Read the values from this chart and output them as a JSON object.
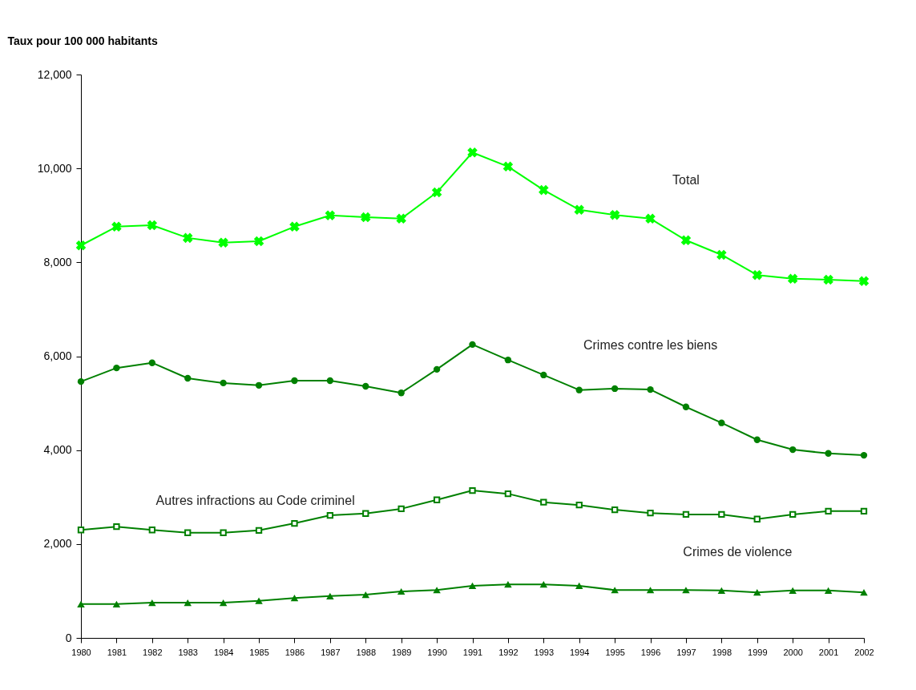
{
  "chart_data": {
    "type": "line",
    "ylabel": "Taux pour 100 000 habitants",
    "categories": [
      "1980",
      "1981",
      "1982",
      "1983",
      "1984",
      "1985",
      "1986",
      "1987",
      "1988",
      "1989",
      "1990",
      "1991",
      "1992",
      "1993",
      "1994",
      "1995",
      "1996",
      "1997",
      "1998",
      "1999",
      "2000",
      "2001",
      "2002"
    ],
    "series": [
      {
        "name": "Total",
        "color": "#00ff00",
        "marker": "cross",
        "values": [
          8360,
          8760,
          8790,
          8520,
          8420,
          8450,
          8760,
          9000,
          8960,
          8930,
          9490,
          10340,
          10040,
          9540,
          9120,
          9010,
          8930,
          8470,
          8160,
          7730,
          7650,
          7630,
          7600
        ]
      },
      {
        "name": "Crimes contre les biens",
        "color": "#008000",
        "marker": "circle",
        "values": [
          5460,
          5750,
          5860,
          5530,
          5430,
          5380,
          5480,
          5480,
          5360,
          5220,
          5720,
          6250,
          5920,
          5600,
          5280,
          5310,
          5290,
          4920,
          4580,
          4220,
          4010,
          3930,
          3890
        ]
      },
      {
        "name": "Autres infractions au Code criminel",
        "color": "#008000",
        "marker": "square",
        "values": [
          2300,
          2370,
          2300,
          2240,
          2240,
          2290,
          2440,
          2610,
          2650,
          2750,
          2940,
          3140,
          3070,
          2890,
          2830,
          2730,
          2660,
          2630,
          2630,
          2530,
          2630,
          2700,
          2700
        ]
      },
      {
        "name": "Crimes de violence",
        "color": "#008000",
        "marker": "triangle",
        "values": [
          720,
          720,
          750,
          750,
          750,
          790,
          850,
          890,
          920,
          990,
          1020,
          1110,
          1140,
          1140,
          1110,
          1020,
          1020,
          1020,
          1010,
          970,
          1010,
          1010,
          970
        ]
      }
    ],
    "ylim": [
      0,
      12000
    ],
    "yticks": [
      {
        "value": 0,
        "label": "0"
      },
      {
        "value": 2000,
        "label": "2,000"
      },
      {
        "value": 4000,
        "label": "4,000"
      },
      {
        "value": 6000,
        "label": "6,000"
      },
      {
        "value": 8000,
        "label": "8,000"
      },
      {
        "value": 10000,
        "label": "10,000"
      },
      {
        "value": 12000,
        "label": "12,000"
      }
    ],
    "grid": false
  }
}
